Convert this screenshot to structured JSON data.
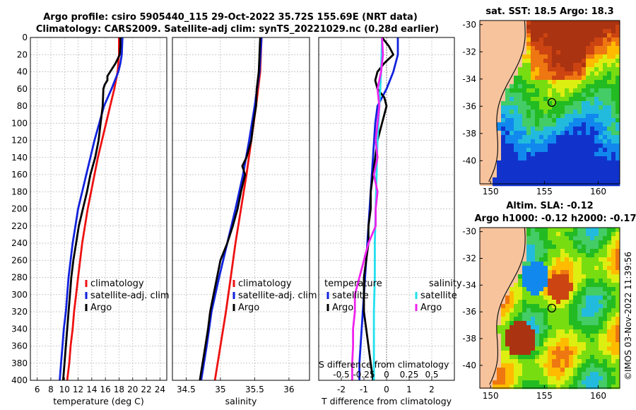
{
  "titles": {
    "line1": "Argo profile: csiro 5905440_115 29-Oct-2022 35.72S 155.69E (NRT data)",
    "line2": "Climatology: CARS2009. Satellite-adj clim: synTS_20221029.nc (0.28d earlier)"
  },
  "colors": {
    "climatology": "#ee1111",
    "satellite": "#1122dd",
    "argo": "#000000",
    "sat_sal": "#22e0ee",
    "argo_sal": "#ee22ee"
  },
  "chart_data": [
    {
      "type": "line",
      "id": "temperature",
      "xlabel": "temperature (deg C)",
      "xlim": [
        5,
        25
      ],
      "ylim": [
        400,
        0
      ],
      "xticks": [
        6,
        8,
        10,
        12,
        14,
        16,
        18,
        20,
        22,
        24
      ],
      "yticks": [
        0,
        20,
        40,
        60,
        80,
        100,
        120,
        140,
        160,
        180,
        200,
        220,
        240,
        260,
        280,
        300,
        320,
        340,
        360,
        380,
        400
      ],
      "legend": [
        "climatology",
        "satellite-adj. clim",
        "Argo"
      ],
      "series": [
        {
          "name": "climatology",
          "y": [
            0,
            20,
            40,
            60,
            80,
            100,
            120,
            140,
            160,
            180,
            200,
            220,
            240,
            260,
            280,
            300,
            320,
            340,
            360,
            380,
            400
          ],
          "x": [
            18.0,
            18.0,
            17.8,
            17.3,
            16.7,
            16.1,
            15.5,
            14.9,
            14.4,
            13.9,
            13.4,
            13.0,
            12.6,
            12.3,
            12.0,
            11.7,
            11.4,
            11.2,
            10.9,
            10.7,
            10.4
          ]
        },
        {
          "name": "satellite-adj. clim",
          "y": [
            0,
            20,
            30,
            40,
            60,
            80,
            100,
            120,
            140,
            160,
            180,
            200,
            220,
            240,
            260,
            280,
            300,
            320,
            340,
            360,
            380,
            400
          ],
          "x": [
            18.5,
            18.4,
            18.2,
            17.9,
            16.9,
            15.8,
            15.1,
            14.4,
            13.8,
            13.2,
            12.6,
            12.0,
            11.6,
            11.2,
            10.9,
            10.6,
            10.4,
            10.2,
            9.9,
            9.7,
            9.5,
            9.3
          ]
        },
        {
          "name": "Argo",
          "y": [
            0,
            10,
            20,
            30,
            40,
            45,
            50,
            55,
            60,
            80,
            100,
            120,
            140,
            160,
            180,
            200,
            220,
            240,
            260,
            280,
            300,
            320,
            340,
            360,
            380,
            400
          ],
          "x": [
            18.2,
            18.2,
            18.1,
            17.5,
            16.7,
            16.3,
            16.3,
            15.9,
            15.7,
            15.6,
            15.3,
            15.0,
            14.5,
            13.8,
            13.3,
            12.7,
            12.1,
            11.7,
            11.3,
            11.0,
            10.8,
            10.6,
            10.4,
            10.2,
            10.0,
            9.8
          ]
        }
      ]
    },
    {
      "type": "line",
      "id": "salinity",
      "xlabel": "salinity",
      "xlim": [
        34.3,
        36.3
      ],
      "ylim": [
        400,
        0
      ],
      "xticks": [
        34.5,
        35,
        35.5,
        36
      ],
      "legend": [
        "climatology",
        "satellite-adj. clim",
        "Argo"
      ],
      "series": [
        {
          "name": "climatology",
          "y": [
            0,
            40,
            80,
            120,
            160,
            200,
            240,
            280,
            320,
            360,
            400
          ],
          "x": [
            35.6,
            35.58,
            35.52,
            35.45,
            35.38,
            35.3,
            35.22,
            35.15,
            35.08,
            35.0,
            34.92
          ]
        },
        {
          "name": "satellite-adj. clim",
          "y": [
            0,
            40,
            80,
            120,
            160,
            200,
            240,
            280,
            320,
            360,
            400
          ],
          "x": [
            35.6,
            35.57,
            35.5,
            35.42,
            35.33,
            35.22,
            35.1,
            34.98,
            34.87,
            34.8,
            34.72
          ]
        },
        {
          "name": "Argo",
          "y": [
            0,
            40,
            60,
            80,
            100,
            120,
            140,
            150,
            160,
            180,
            200,
            220,
            240,
            260,
            280,
            300,
            320,
            340,
            360,
            380,
            400
          ],
          "x": [
            35.58,
            35.56,
            35.53,
            35.52,
            35.48,
            35.45,
            35.38,
            35.32,
            35.36,
            35.3,
            35.25,
            35.18,
            35.1,
            35.0,
            34.95,
            34.9,
            34.85,
            34.82,
            34.78,
            34.74,
            34.7
          ]
        }
      ]
    },
    {
      "type": "line",
      "id": "difference",
      "xlabel": "T difference from climatology",
      "top_label": "S difference from climatology",
      "xlim": [
        -3,
        3
      ],
      "ylim": [
        400,
        0
      ],
      "xticks": [
        -2,
        -1,
        0,
        1,
        2
      ],
      "s_ticks": [
        -0.5,
        -0.25,
        0,
        0.25,
        0.5
      ],
      "s_tick_labels": [
        "-0.5",
        "-0.25",
        "0",
        "0.25",
        "0.5"
      ],
      "legend": {
        "temperature_title": "temperature",
        "salinity_title": "salinity",
        "items": [
          "satellite",
          "Argo",
          "satellite",
          "Argo"
        ]
      },
      "series": [
        {
          "name": "temperature satellite",
          "y": [
            0,
            20,
            40,
            60,
            80,
            100,
            140,
            180,
            220,
            260,
            300,
            340,
            380,
            400
          ],
          "x": [
            0.5,
            0.5,
            0.3,
            0.0,
            -0.4,
            -0.5,
            -0.6,
            -0.7,
            -0.8,
            -0.9,
            -1.0,
            -1.1,
            -1.2,
            -1.2
          ]
        },
        {
          "name": "temperature Argo",
          "y": [
            0,
            10,
            20,
            30,
            40,
            50,
            60,
            70,
            80,
            100,
            120,
            140,
            160,
            180,
            200,
            220,
            240,
            260,
            280,
            300,
            320,
            340,
            360,
            380,
            400
          ],
          "x": [
            -0.2,
            0.1,
            0.3,
            -0.1,
            -0.4,
            -0.5,
            -0.4,
            -0.1,
            0.0,
            -0.2,
            -0.4,
            -0.5,
            -0.6,
            -0.7,
            -0.7,
            -0.8,
            -0.8,
            -0.9,
            -1.0,
            -1.0,
            -1.0,
            -0.9,
            -0.8,
            -0.7,
            -0.6
          ]
        },
        {
          "name": "salinity satellite",
          "y": [
            0,
            40,
            80,
            120,
            160,
            200,
            240,
            280,
            320,
            360,
            400
          ],
          "x": [
            -0.05,
            -0.06,
            -0.08,
            -0.1,
            -0.11,
            -0.12,
            -0.13,
            -0.13,
            -0.14,
            -0.14,
            -0.14
          ]
        },
        {
          "name": "salinity Argo",
          "y": [
            0,
            20,
            40,
            60,
            80,
            100,
            120,
            140,
            160,
            180,
            200,
            220,
            240,
            260,
            280,
            300,
            320,
            340,
            360,
            380,
            400
          ],
          "x": [
            -0.05,
            -0.04,
            -0.06,
            -0.1,
            -0.08,
            -0.1,
            -0.12,
            -0.1,
            -0.14,
            -0.1,
            -0.12,
            -0.12,
            -0.2,
            -0.25,
            -0.3,
            -0.35,
            -0.35,
            -0.37,
            -0.37,
            -0.38,
            -0.38
          ]
        }
      ]
    },
    {
      "type": "heatmap",
      "id": "sst_map",
      "title": "sat. SST: 18.5 Argo: 18.3",
      "xlim": [
        149,
        162
      ],
      "ylim": [
        -41.7,
        -29.7
      ],
      "xticks": [
        150,
        155,
        160
      ],
      "yticks": [
        -30,
        -32,
        -34,
        -36,
        -38,
        -40
      ],
      "marker": {
        "lon": 155.69,
        "lat": -35.72
      }
    },
    {
      "type": "heatmap",
      "id": "sla_map",
      "title": "Altim. SLA: -0.12",
      "subtitle": "Argo h1000: -0.12 h2000: -0.17",
      "xlim": [
        149,
        162
      ],
      "ylim": [
        -41.7,
        -29.7
      ],
      "xticks": [
        150,
        155,
        160
      ],
      "yticks": [
        -30,
        -32,
        -34,
        -36,
        -38,
        -40
      ],
      "marker": {
        "lon": 155.69,
        "lat": -35.72
      }
    }
  ],
  "footer": "©IMOS 03-Nov-2022 11:39:56"
}
